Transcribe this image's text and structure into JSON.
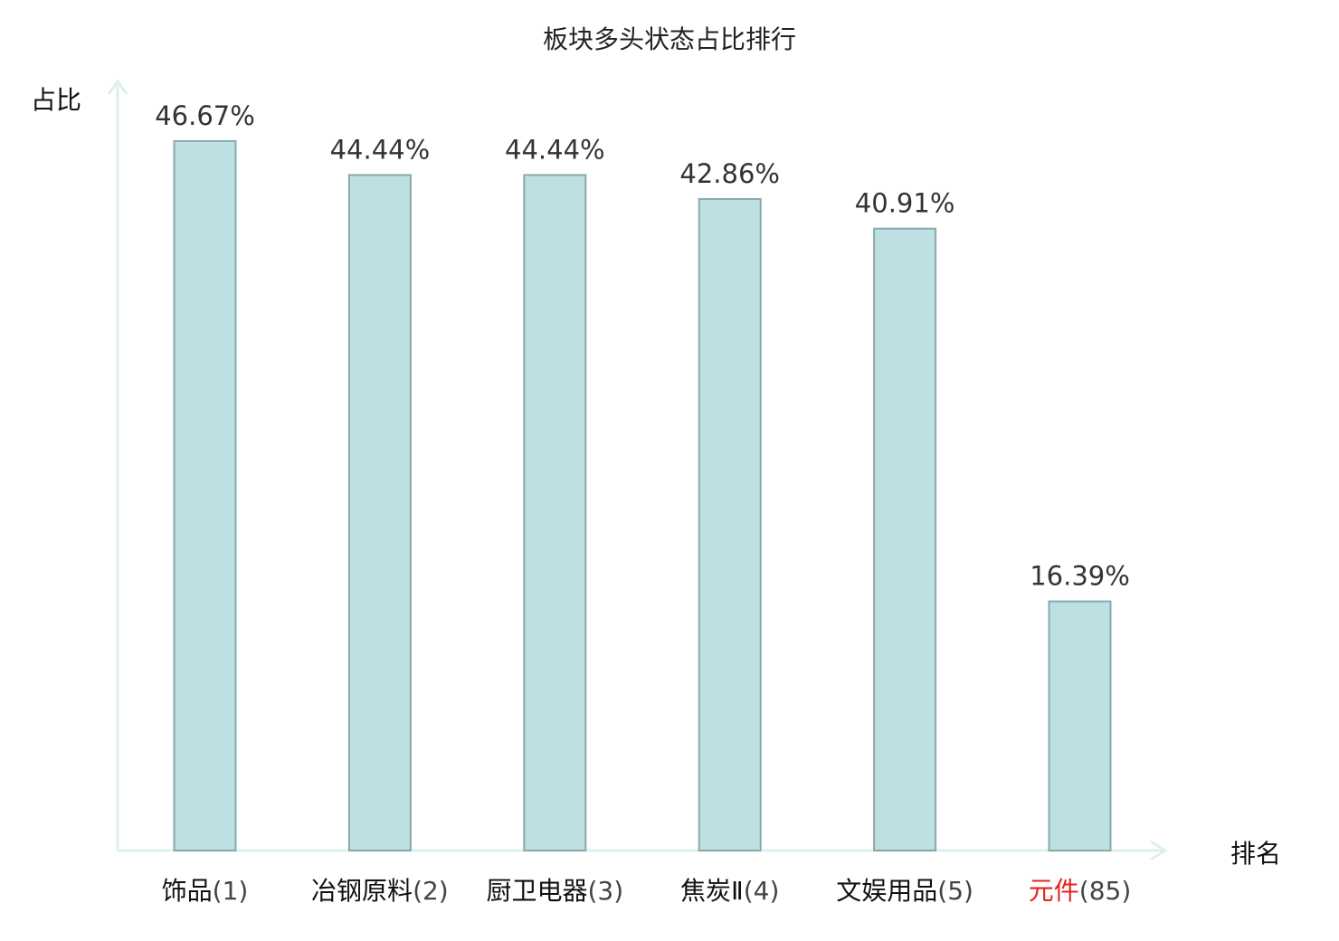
{
  "chart_data": {
    "type": "bar",
    "title": "板块多头状态占比排行",
    "ylabel": "占比",
    "xlabel": "排名",
    "ylim": [
      0,
      50
    ],
    "grid": false,
    "categories": [
      {
        "name": "饰品",
        "rank": "(1)"
      },
      {
        "name": "冶钢原料",
        "rank": "(2)"
      },
      {
        "name": "厨卫电器",
        "rank": "(3)"
      },
      {
        "name": "焦炭Ⅱ",
        "rank": "(4)"
      },
      {
        "name": "文娱用品",
        "rank": "(5)"
      },
      {
        "name": "元件",
        "rank": "(85)"
      }
    ],
    "values": [
      46.67,
      44.44,
      44.44,
      42.86,
      40.91,
      16.39
    ],
    "value_labels": [
      "46.67%",
      "44.44%",
      "44.44%",
      "42.86%",
      "40.91%",
      "16.39%"
    ],
    "highlight_index": 5
  },
  "colors": {
    "bar_fill": "#bde0e3",
    "bar_stroke": "#8aa9ab",
    "axis": "#ddf0ee",
    "highlight": "#e0241f",
    "text": "#222222"
  }
}
